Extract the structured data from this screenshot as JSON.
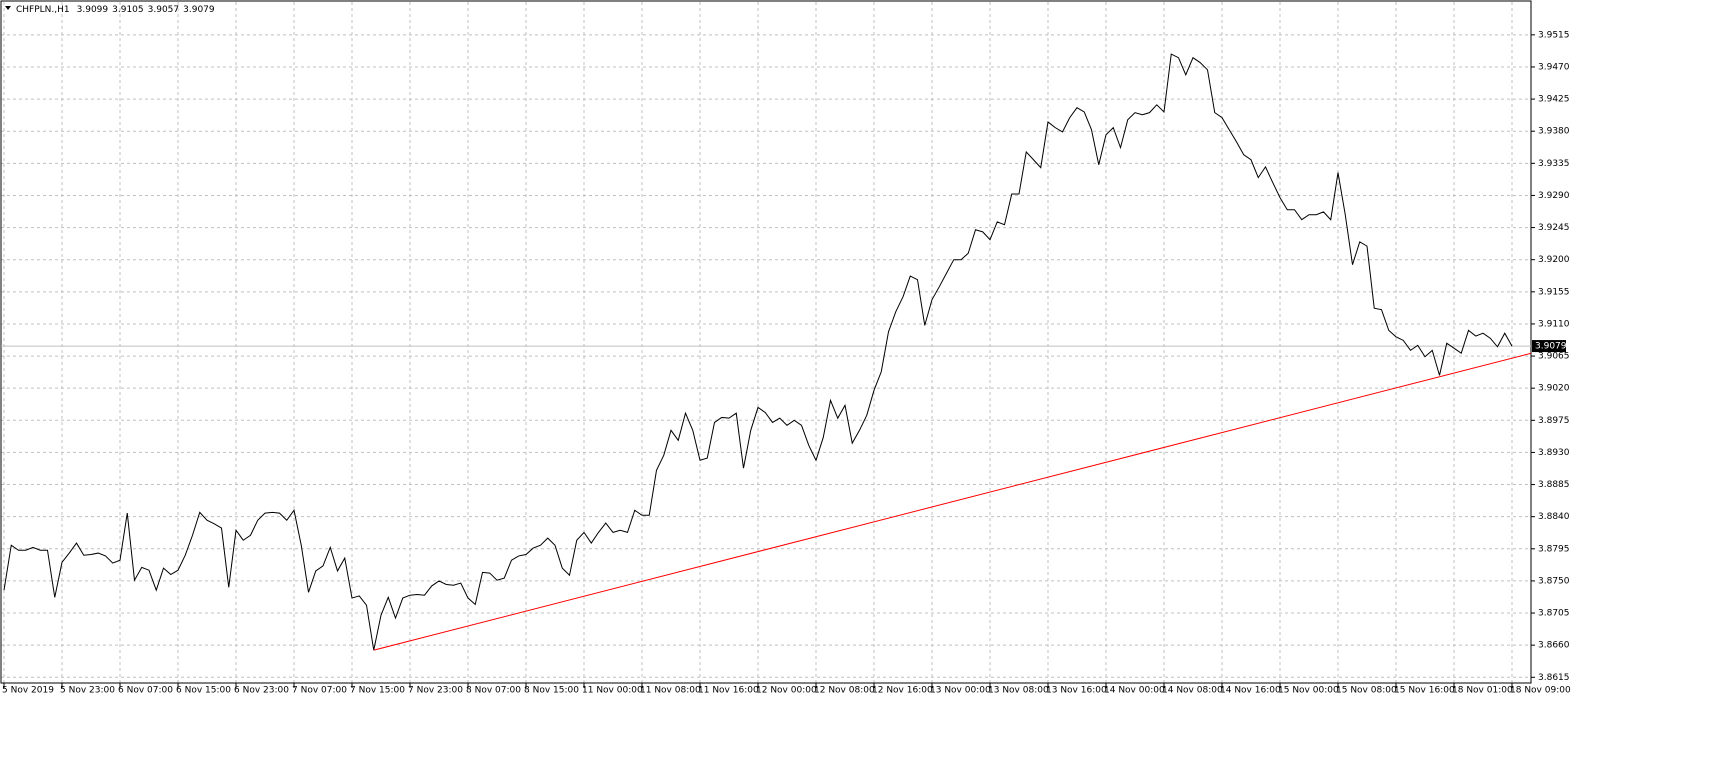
{
  "chart_data": {
    "type": "line",
    "symbol": "CHFPLN.,H1",
    "ohlc": [
      3.9099,
      3.9105,
      3.9057,
      3.9079
    ],
    "color": "#000000",
    "background": "#ffffff",
    "grid": true,
    "grid_color": "#c0c0c0",
    "values": [
      3.8737,
      3.88,
      3.8793,
      3.8793,
      3.8797,
      3.8793,
      3.8793,
      3.8727,
      3.8776,
      3.8789,
      3.8803,
      3.8786,
      3.8787,
      3.8789,
      3.8785,
      3.8775,
      3.8779,
      3.8845,
      3.8751,
      3.8769,
      3.8765,
      3.8737,
      3.8768,
      3.8759,
      3.8765,
      3.8786,
      3.8814,
      3.8846,
      3.8835,
      3.883,
      3.8824,
      3.8741,
      3.8821,
      3.8807,
      3.8814,
      3.8835,
      3.8845,
      3.8846,
      3.8845,
      3.8835,
      3.8849,
      3.88,
      3.8734,
      3.8764,
      3.8771,
      3.8797,
      3.8764,
      3.8782,
      3.8726,
      3.8729,
      3.8716,
      3.8653,
      3.8702,
      3.8727,
      3.8698,
      3.8726,
      3.873,
      3.8731,
      3.873,
      3.8743,
      3.875,
      3.8745,
      3.8744,
      3.8747,
      3.8726,
      3.8717,
      3.8762,
      3.8761,
      3.8751,
      3.8754,
      3.8779,
      3.8785,
      3.8787,
      3.8796,
      3.88,
      3.881,
      3.88,
      3.8768,
      3.8758,
      3.8807,
      3.8818,
      3.8803,
      3.8818,
      3.8831,
      3.8818,
      3.8821,
      3.8818,
      3.8849,
      3.8842,
      3.8842,
      3.8905,
      3.8926,
      3.8961,
      3.8947,
      3.8985,
      3.8961,
      3.8919,
      3.8922,
      3.8972,
      3.8979,
      3.8978,
      3.8985,
      3.8908,
      3.8961,
      3.8993,
      3.8986,
      3.8972,
      3.8978,
      3.8968,
      3.8975,
      3.8968,
      3.894,
      3.8919,
      3.8951,
      3.9003,
      3.8978,
      3.8996,
      3.8943,
      3.8961,
      3.8982,
      3.9017,
      3.9043,
      3.9099,
      3.9127,
      3.9148,
      3.9177,
      3.9172,
      3.9108,
      3.9144,
      3.9162,
      3.9181,
      3.92,
      3.92,
      3.9209,
      3.9242,
      3.9239,
      3.9228,
      3.9253,
      3.9249,
      3.9292,
      3.9292,
      3.9351,
      3.934,
      3.9329,
      3.9393,
      3.9385,
      3.9379,
      3.9399,
      3.9413,
      3.9407,
      3.9382,
      3.9333,
      3.9375,
      3.9385,
      3.9357,
      3.9396,
      3.9406,
      3.9403,
      3.9406,
      3.9417,
      3.9407,
      3.9488,
      3.9483,
      3.9459,
      3.9483,
      3.9476,
      3.9466,
      3.9406,
      3.9399,
      3.9382,
      3.9365,
      3.9347,
      3.934,
      3.9315,
      3.933,
      3.9308,
      3.9287,
      3.927,
      3.927,
      3.9256,
      3.9263,
      3.9263,
      3.9267,
      3.9256,
      3.9322,
      3.9263,
      3.9193,
      3.9225,
      3.9219,
      3.9132,
      3.913,
      3.9101,
      3.9092,
      3.9087,
      3.9073,
      3.908,
      3.9064,
      3.9073,
      3.9038,
      3.9083,
      3.9076,
      3.9069,
      3.9101,
      3.9093,
      3.9097,
      3.909,
      3.9078,
      3.9097,
      3.9079
    ],
    "xticks": [
      {
        "value": 0,
        "label": "5 Nov 2019"
      },
      {
        "value": 8,
        "label": "5 Nov 23:00"
      },
      {
        "value": 16,
        "label": "6 Nov 07:00"
      },
      {
        "value": 24,
        "label": "6 Nov 15:00"
      },
      {
        "value": 32,
        "label": "6 Nov 23:00"
      },
      {
        "value": 40,
        "label": "7 Nov 07:00"
      },
      {
        "value": 48,
        "label": "7 Nov 15:00"
      },
      {
        "value": 56,
        "label": "7 Nov 23:00"
      },
      {
        "value": 64,
        "label": "8 Nov 07:00"
      },
      {
        "value": 72,
        "label": "8 Nov 15:00"
      },
      {
        "value": 80,
        "label": "11 Nov 00:00"
      },
      {
        "value": 88,
        "label": "11 Nov 08:00"
      },
      {
        "value": 96,
        "label": "11 Nov 16:00"
      },
      {
        "value": 104,
        "label": "12 Nov 00:00"
      },
      {
        "value": 112,
        "label": "12 Nov 08:00"
      },
      {
        "value": 120,
        "label": "12 Nov 16:00"
      },
      {
        "value": 128,
        "label": "13 Nov 00:00"
      },
      {
        "value": 136,
        "label": "13 Nov 08:00"
      },
      {
        "value": 144,
        "label": "13 Nov 16:00"
      },
      {
        "value": 152,
        "label": "14 Nov 00:00"
      },
      {
        "value": 160,
        "label": "14 Nov 08:00"
      },
      {
        "value": 168,
        "label": "14 Nov 16:00"
      },
      {
        "value": 176,
        "label": "15 Nov 00:00"
      },
      {
        "value": 184,
        "label": "15 Nov 08:00"
      },
      {
        "value": 192,
        "label": "15 Nov 16:00"
      },
      {
        "value": 200,
        "label": "18 Nov 01:00"
      },
      {
        "value": 208,
        "label": "18 Nov 09:00"
      }
    ],
    "ylim": [
      3.8607,
      3.9561
    ],
    "yticks": [
      3.8615,
      {
        "value": 3.866,
        "label": "3.8660"
      },
      3.8705,
      {
        "value": 3.875,
        "label": "3.8750"
      },
      3.8795,
      {
        "value": 3.884,
        "label": "3.8840"
      },
      3.8885,
      {
        "value": 3.893,
        "label": "3.8930"
      },
      3.8975,
      {
        "value": 3.902,
        "label": "3.9020"
      },
      3.9065,
      {
        "value": 3.911,
        "label": "3.9110"
      },
      3.9155,
      {
        "value": 3.92,
        "label": "3.9200"
      },
      3.9245,
      {
        "value": 3.929,
        "label": "3.9290"
      },
      3.9335,
      {
        "value": 3.938,
        "label": "3.9380"
      },
      3.9425,
      {
        "value": 3.947,
        "label": "3.9470"
      },
      3.9515
    ],
    "trendline": {
      "color": "#ff0000",
      "x": [
        51,
        198
      ],
      "y": [
        3.8653,
        3.9036
      ],
      "ray": true
    }
  }
}
